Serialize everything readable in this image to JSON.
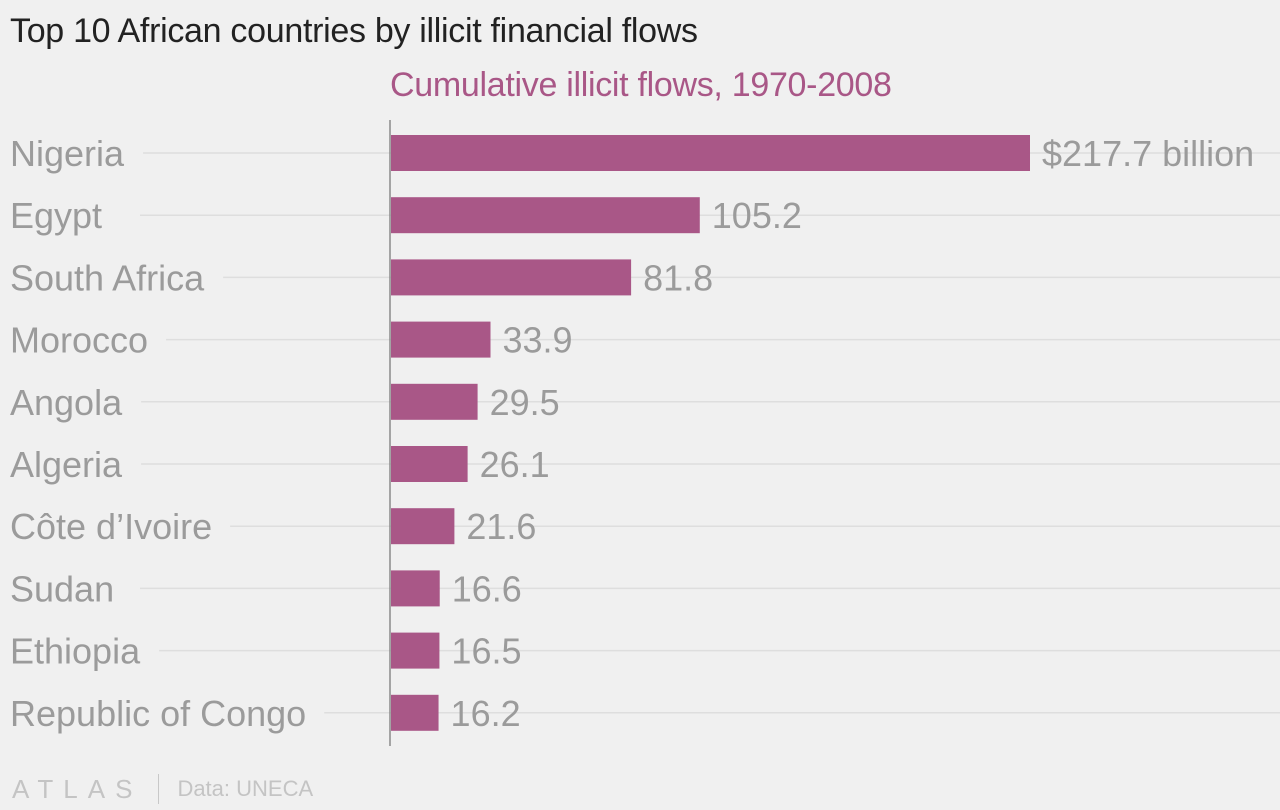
{
  "title": "Top 10 African countries by illicit financial flows",
  "footer": {
    "logo": "ATLAS",
    "source": "Data: UNECA"
  },
  "colors": {
    "bar": "#a95787",
    "subtitle": "#a95787",
    "label": "#9b9b9b",
    "title": "#222222",
    "background": "#f0f0f0"
  },
  "chart_data": {
    "type": "bar",
    "orientation": "horizontal",
    "title": "Top 10 African countries by illicit financial flows",
    "subtitle": "Cumulative illicit flows, 1970-2008",
    "categories": [
      "Nigeria",
      "Egypt",
      "South Africa",
      "Morocco",
      "Angola",
      "Algeria",
      "Côte d’Ivoire",
      "Sudan",
      "Ethiopia",
      "Republic of Congo"
    ],
    "values": [
      217.7,
      105.2,
      81.8,
      33.9,
      29.5,
      26.1,
      21.6,
      16.6,
      16.5,
      16.2
    ],
    "value_labels": [
      "$217.7 billion",
      "105.2",
      "81.8",
      "33.9",
      "29.5",
      "26.1",
      "21.6",
      "16.6",
      "16.5",
      "16.2"
    ],
    "xlim": [
      0,
      217.7
    ],
    "grid": true,
    "legend": "none"
  }
}
